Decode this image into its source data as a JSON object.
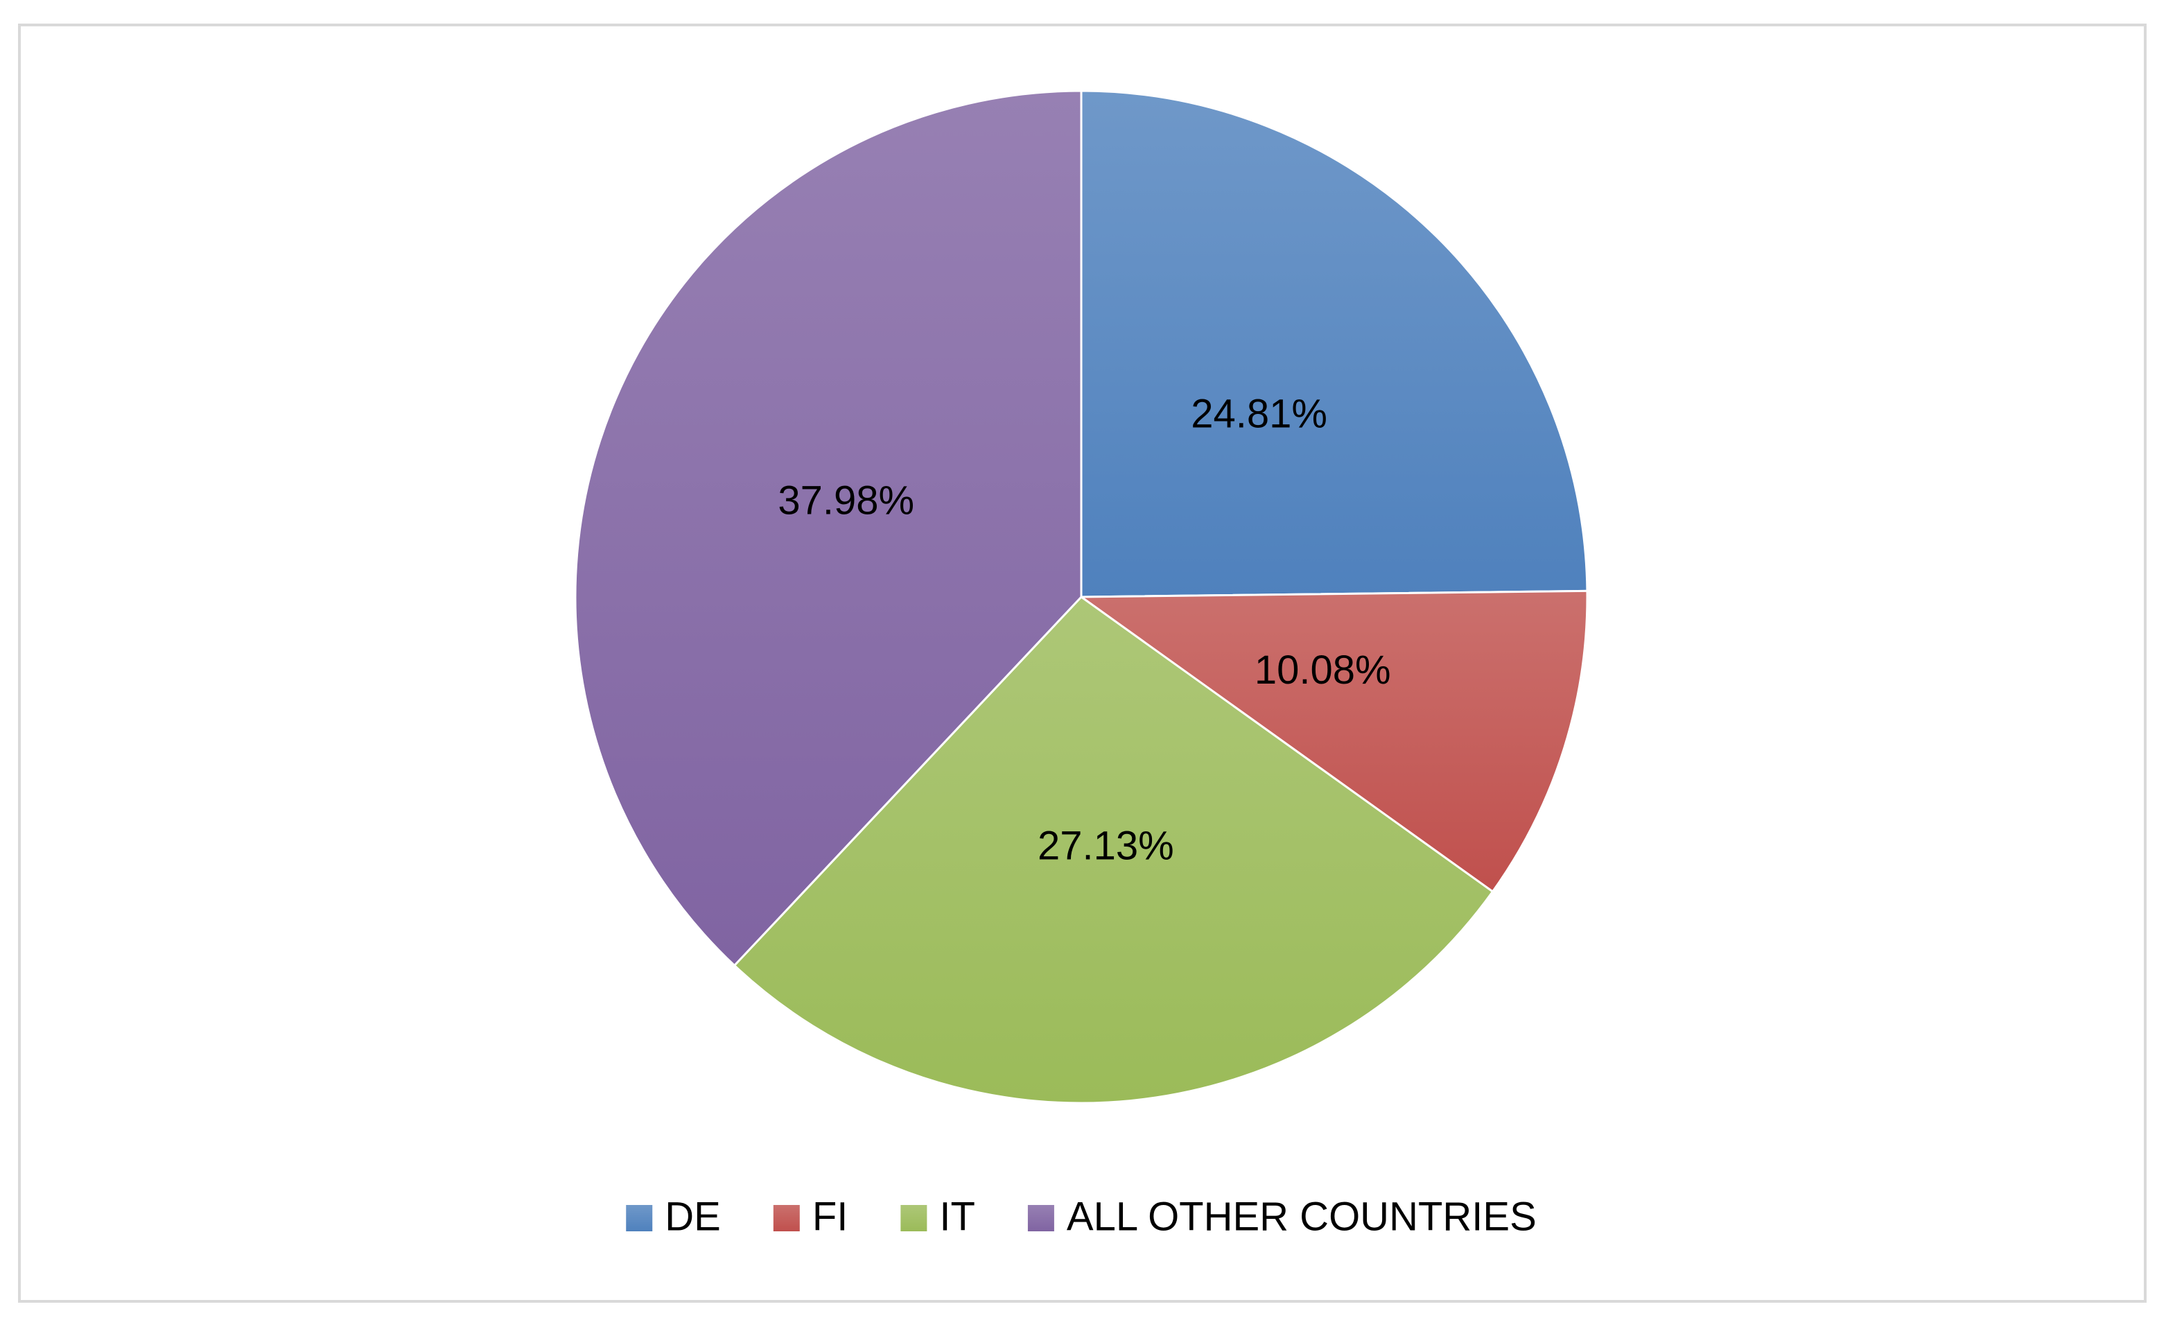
{
  "chart_data": {
    "type": "pie",
    "categories": [
      "DE",
      "FI",
      "IT",
      "ALL OTHER COUNTRIES"
    ],
    "values": [
      24.81,
      10.08,
      27.13,
      37.98
    ],
    "value_labels": [
      "24.81%",
      "10.08%",
      "27.13%",
      "37.98%"
    ],
    "colors": [
      "#4f81bd",
      "#c0504d",
      "#9bbb59",
      "#8064a2"
    ]
  }
}
